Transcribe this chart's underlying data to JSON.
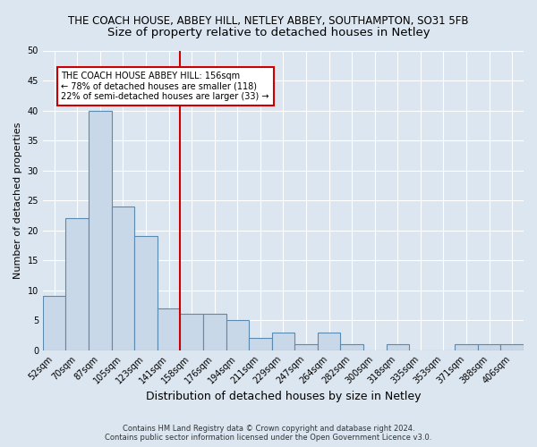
{
  "title": "THE COACH HOUSE, ABBEY HILL, NETLEY ABBEY, SOUTHAMPTON, SO31 5FB",
  "subtitle": "Size of property relative to detached houses in Netley",
  "xlabel": "Distribution of detached houses by size in Netley",
  "ylabel": "Number of detached properties",
  "categories": [
    "52sqm",
    "70sqm",
    "87sqm",
    "105sqm",
    "123sqm",
    "141sqm",
    "158sqm",
    "176sqm",
    "194sqm",
    "211sqm",
    "229sqm",
    "247sqm",
    "264sqm",
    "282sqm",
    "300sqm",
    "318sqm",
    "335sqm",
    "353sqm",
    "371sqm",
    "388sqm",
    "406sqm"
  ],
  "values": [
    9,
    22,
    40,
    24,
    19,
    7,
    6,
    6,
    5,
    2,
    3,
    1,
    3,
    1,
    0,
    1,
    0,
    0,
    1,
    1,
    1
  ],
  "bar_color": "#c8d8e8",
  "bar_edgecolor": "#5a8ab0",
  "vline_x": 5.5,
  "vline_color": "#cc0000",
  "annotation_text": "THE COACH HOUSE ABBEY HILL: 156sqm\n← 78% of detached houses are smaller (118)\n22% of semi-detached houses are larger (33) →",
  "annotation_box_color": "#ffffff",
  "annotation_box_edgecolor": "#cc0000",
  "ylim": [
    0,
    50
  ],
  "yticks": [
    0,
    5,
    10,
    15,
    20,
    25,
    30,
    35,
    40,
    45,
    50
  ],
  "background_color": "#dce6f0",
  "footer": "Contains HM Land Registry data © Crown copyright and database right 2024.\nContains public sector information licensed under the Open Government Licence v3.0.",
  "title_fontsize": 8.5,
  "subtitle_fontsize": 9.5,
  "axis_label_fontsize": 8,
  "tick_fontsize": 7,
  "annotation_fontsize": 7,
  "footer_fontsize": 6
}
